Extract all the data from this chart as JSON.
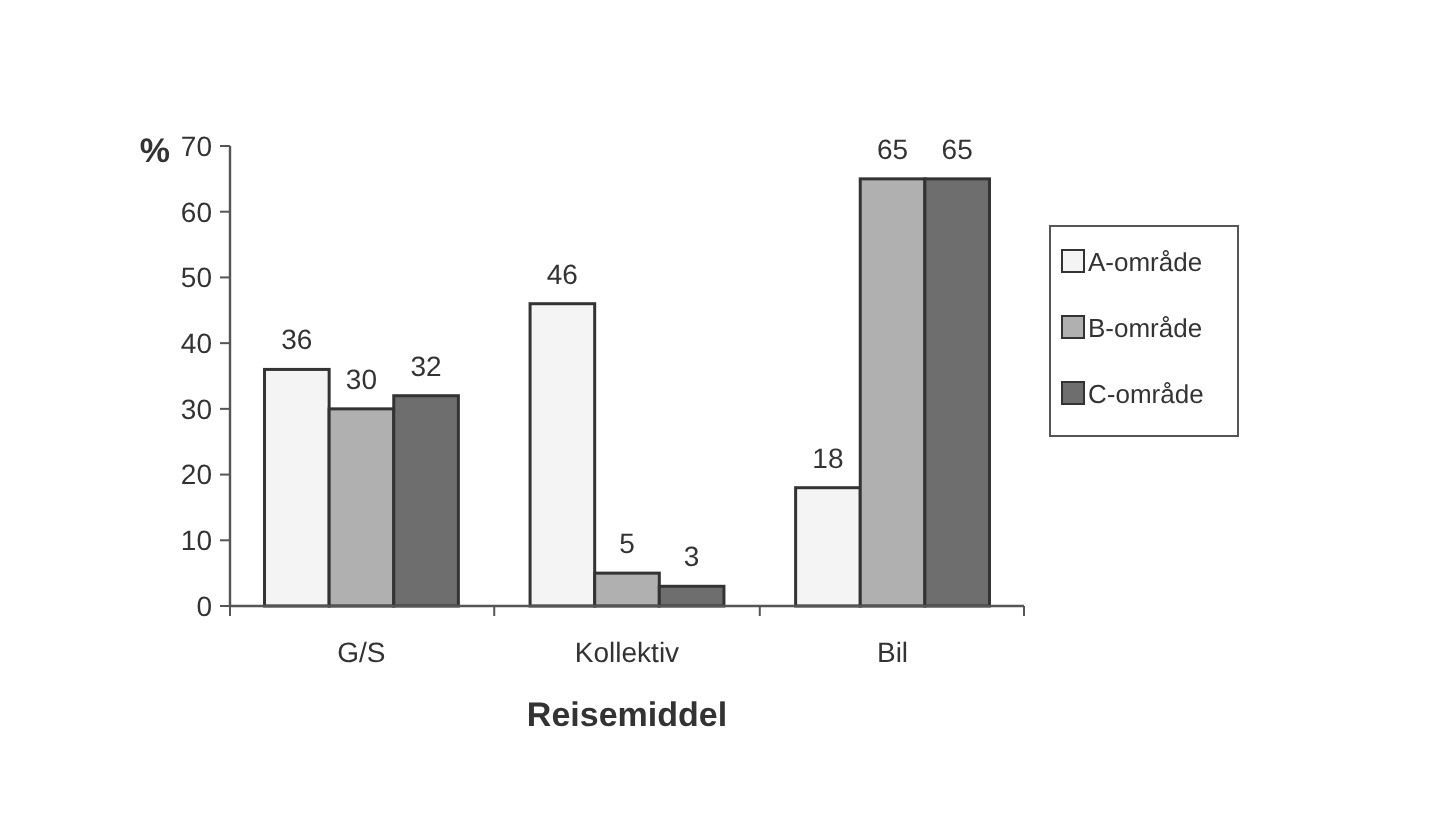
{
  "chart_data": {
    "type": "bar",
    "xlabel": "Reisemiddel",
    "ylabel": "%",
    "categories": [
      "G/S",
      "Kollektiv",
      "Bil"
    ],
    "series": [
      {
        "name": "A-område",
        "color": "#f4f4f4",
        "values": [
          36,
          46,
          18
        ]
      },
      {
        "name": "B-område",
        "color": "#b0b0b0",
        "values": [
          30,
          5,
          65
        ]
      },
      {
        "name": "C-område",
        "color": "#6e6e6e",
        "values": [
          32,
          3,
          65
        ]
      }
    ],
    "ylim": [
      0,
      70
    ],
    "yticks": [
      0,
      10,
      20,
      30,
      40,
      50,
      60,
      70
    ],
    "grid": false,
    "legend": "right",
    "data_labels": true
  }
}
